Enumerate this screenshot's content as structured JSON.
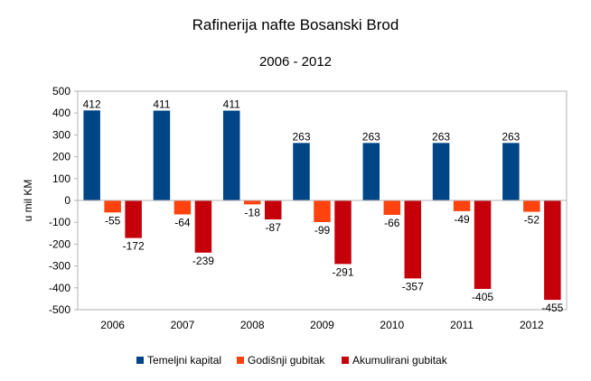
{
  "chart_data": {
    "type": "bar",
    "title": "Rafinerija nafte Bosanski Brod",
    "subtitle": "2006 - 2012",
    "ylabel": "u mil KM",
    "xlabel": "",
    "ylim": [
      -500,
      500
    ],
    "yticks": [
      500,
      400,
      300,
      200,
      100,
      0,
      -100,
      -200,
      -300,
      -400,
      -500
    ],
    "categories": [
      "2006",
      "2007",
      "2008",
      "2009",
      "2010",
      "2011",
      "2012"
    ],
    "series": [
      {
        "name": "Temeljni kapital",
        "color": "#004586",
        "values": [
          412,
          411,
          411,
          263,
          263,
          263,
          263
        ]
      },
      {
        "name": "Godišnji gubitak",
        "color": "#ff420e",
        "values": [
          -55,
          -64,
          -18,
          -99,
          -66,
          -49,
          -52
        ]
      },
      {
        "name": "Akumulirani gubitak",
        "color": "#c5000b",
        "values": [
          -172,
          -239,
          -87,
          -291,
          -357,
          -405,
          -455
        ]
      }
    ],
    "grid": false,
    "legend_position": "bottom"
  }
}
